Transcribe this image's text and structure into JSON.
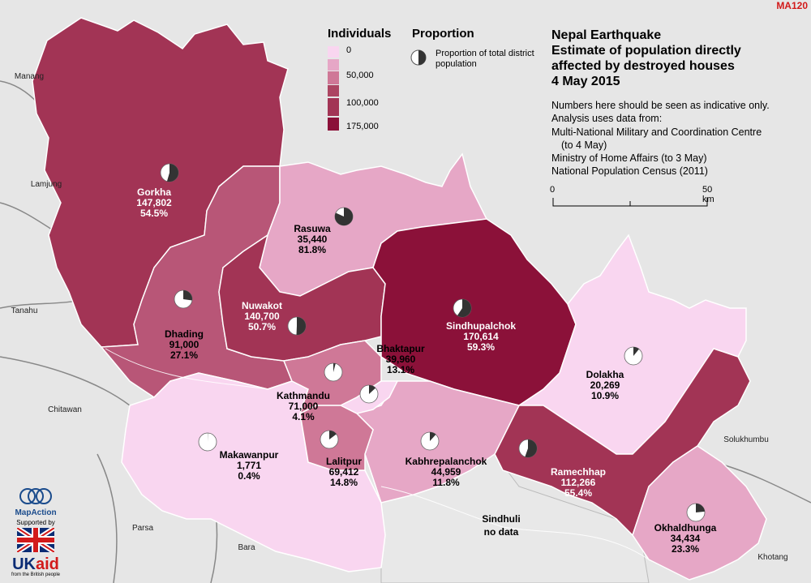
{
  "map_code": "MA120",
  "title": {
    "line1": "Nepal Earthquake",
    "line2": "Estimate of population directly",
    "line3": "affected by destroyed houses",
    "line4": "4 May 2015"
  },
  "notes": [
    "Numbers here should be seen as indicative only.",
    "Analysis uses data from:",
    "Multi-National Military and Coordination Centre",
    "(to 4 May)",
    "Ministry of Home Affairs (to 3 May)",
    "National Population Census (2011)"
  ],
  "legend": {
    "individuals_title": "Individuals",
    "proportion_title": "Proportion",
    "proportion_desc": "Proportion of total district population",
    "classes": [
      {
        "label": "0",
        "color": "#f9d6f0"
      },
      {
        "label": "",
        "color": "#e6a7c6"
      },
      {
        "label": "50,000",
        "color": "#cf7897"
      },
      {
        "label": "",
        "color": "#ac4562"
      },
      {
        "label": "100,000",
        "color": "#a23455"
      },
      {
        "label": "175,000",
        "color": "#8b1139"
      }
    ],
    "break_labels": [
      "0",
      "50,000",
      "100,000",
      "175,000"
    ]
  },
  "scale": {
    "start": "0",
    "end": "50 km"
  },
  "districts": [
    {
      "name": "Gorkha",
      "value": "147,802",
      "pct": "54.5%",
      "fraction": 0.545
    },
    {
      "name": "Rasuwa",
      "value": "35,440",
      "pct": "81.8%",
      "fraction": 0.818
    },
    {
      "name": "Nuwakot",
      "value": "140,700",
      "pct": "50.7%",
      "fraction": 0.507
    },
    {
      "name": "Dhading",
      "value": "91,000",
      "pct": "27.1%",
      "fraction": 0.271
    },
    {
      "name": "Sindhupalchok",
      "value": "170,614",
      "pct": "59.3%",
      "fraction": 0.593
    },
    {
      "name": "Bhaktapur",
      "value": "39,960",
      "pct": "13.1%",
      "fraction": 0.131
    },
    {
      "name": "Kathmandu",
      "value": "71,000",
      "pct": "4.1%",
      "fraction": 0.041
    },
    {
      "name": "Dolakha",
      "value": "20,269",
      "pct": "10.9%",
      "fraction": 0.109
    },
    {
      "name": "Makawanpur",
      "value": "1,771",
      "pct": "0.4%",
      "fraction": 0.004
    },
    {
      "name": "Lalitpur",
      "value": "69,412",
      "pct": "14.8%",
      "fraction": 0.148
    },
    {
      "name": "Kabhrepalanchok",
      "value": "44,959",
      "pct": "11.8%",
      "fraction": 0.118
    },
    {
      "name": "Ramechhap",
      "value": "112,266",
      "pct": "55.4%",
      "fraction": 0.554
    },
    {
      "name": "Okhaldhunga",
      "value": "34,434",
      "pct": "23.3%",
      "fraction": 0.233
    }
  ],
  "sindhuli": {
    "name": "Sindhuli",
    "status": "no data"
  },
  "other_districts": [
    "Manang",
    "Lamjung",
    "Tanahu",
    "Chitawan",
    "Parsa",
    "Bara",
    "Solukhumbu",
    "Khotang"
  ],
  "logos": {
    "mapaction": "MapAction",
    "supported_by": "Supported by",
    "ukaid_uk": "UK",
    "ukaid_aid": "aid",
    "british_people": "from the British people"
  }
}
